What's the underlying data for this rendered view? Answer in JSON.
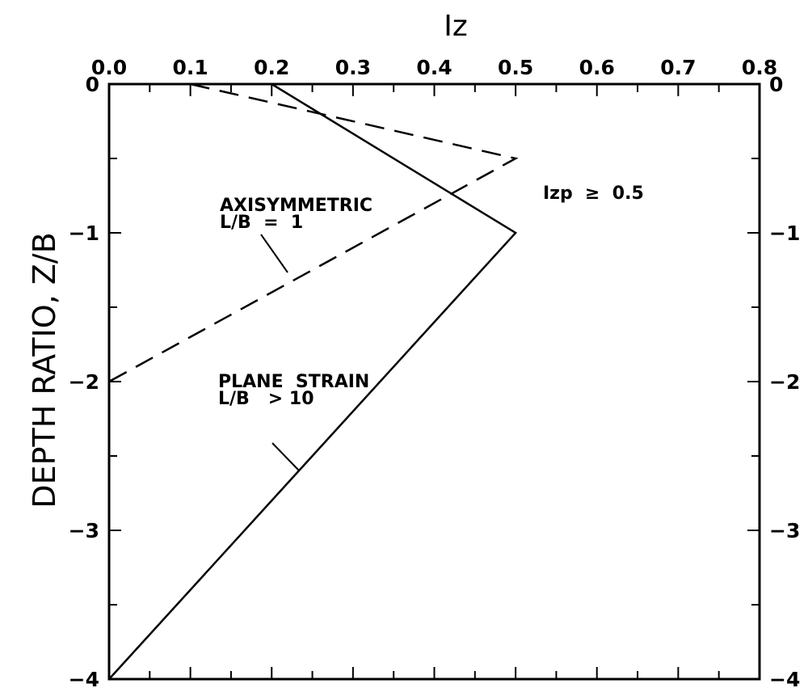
{
  "chart_data": {
    "type": "line",
    "xlabel": "Iz",
    "ylabel": "DEPTH RATIO, Z/B",
    "xlim": [
      0.0,
      0.8
    ],
    "ylim": [
      -4,
      0
    ],
    "x_axis_position": "top",
    "x_ticks": [
      0.0,
      0.1,
      0.2,
      0.3,
      0.4,
      0.5,
      0.6,
      0.7,
      0.8
    ],
    "x_tick_labels": [
      "0.0",
      "0.1",
      "0.2",
      "0.3",
      "0.4",
      "0.5",
      "0.6",
      "0.7",
      "0.8"
    ],
    "y_ticks": [
      0,
      -1,
      -2,
      -3,
      -4
    ],
    "y_tick_labels": [
      "0",
      "−1",
      "−2",
      "−3",
      "−4"
    ],
    "grid": false,
    "series": [
      {
        "style": "dashed",
        "x": [
          0.1,
          0.5,
          0.0
        ],
        "y": [
          0,
          -0.5,
          -2
        ]
      },
      {
        "style": "solid",
        "x": [
          0.2,
          0.5,
          0.0
        ],
        "y": [
          0,
          -1,
          -4
        ]
      }
    ],
    "annotations": {
      "axisymmetric": {
        "line1": "AXISYMMETRIC",
        "line2": "L/B  =  1"
      },
      "plane_strain": {
        "line1": "PLANE  STRAIN",
        "line2": "L/B   > 10"
      },
      "izp": "Izp  ≥  0.5"
    }
  }
}
